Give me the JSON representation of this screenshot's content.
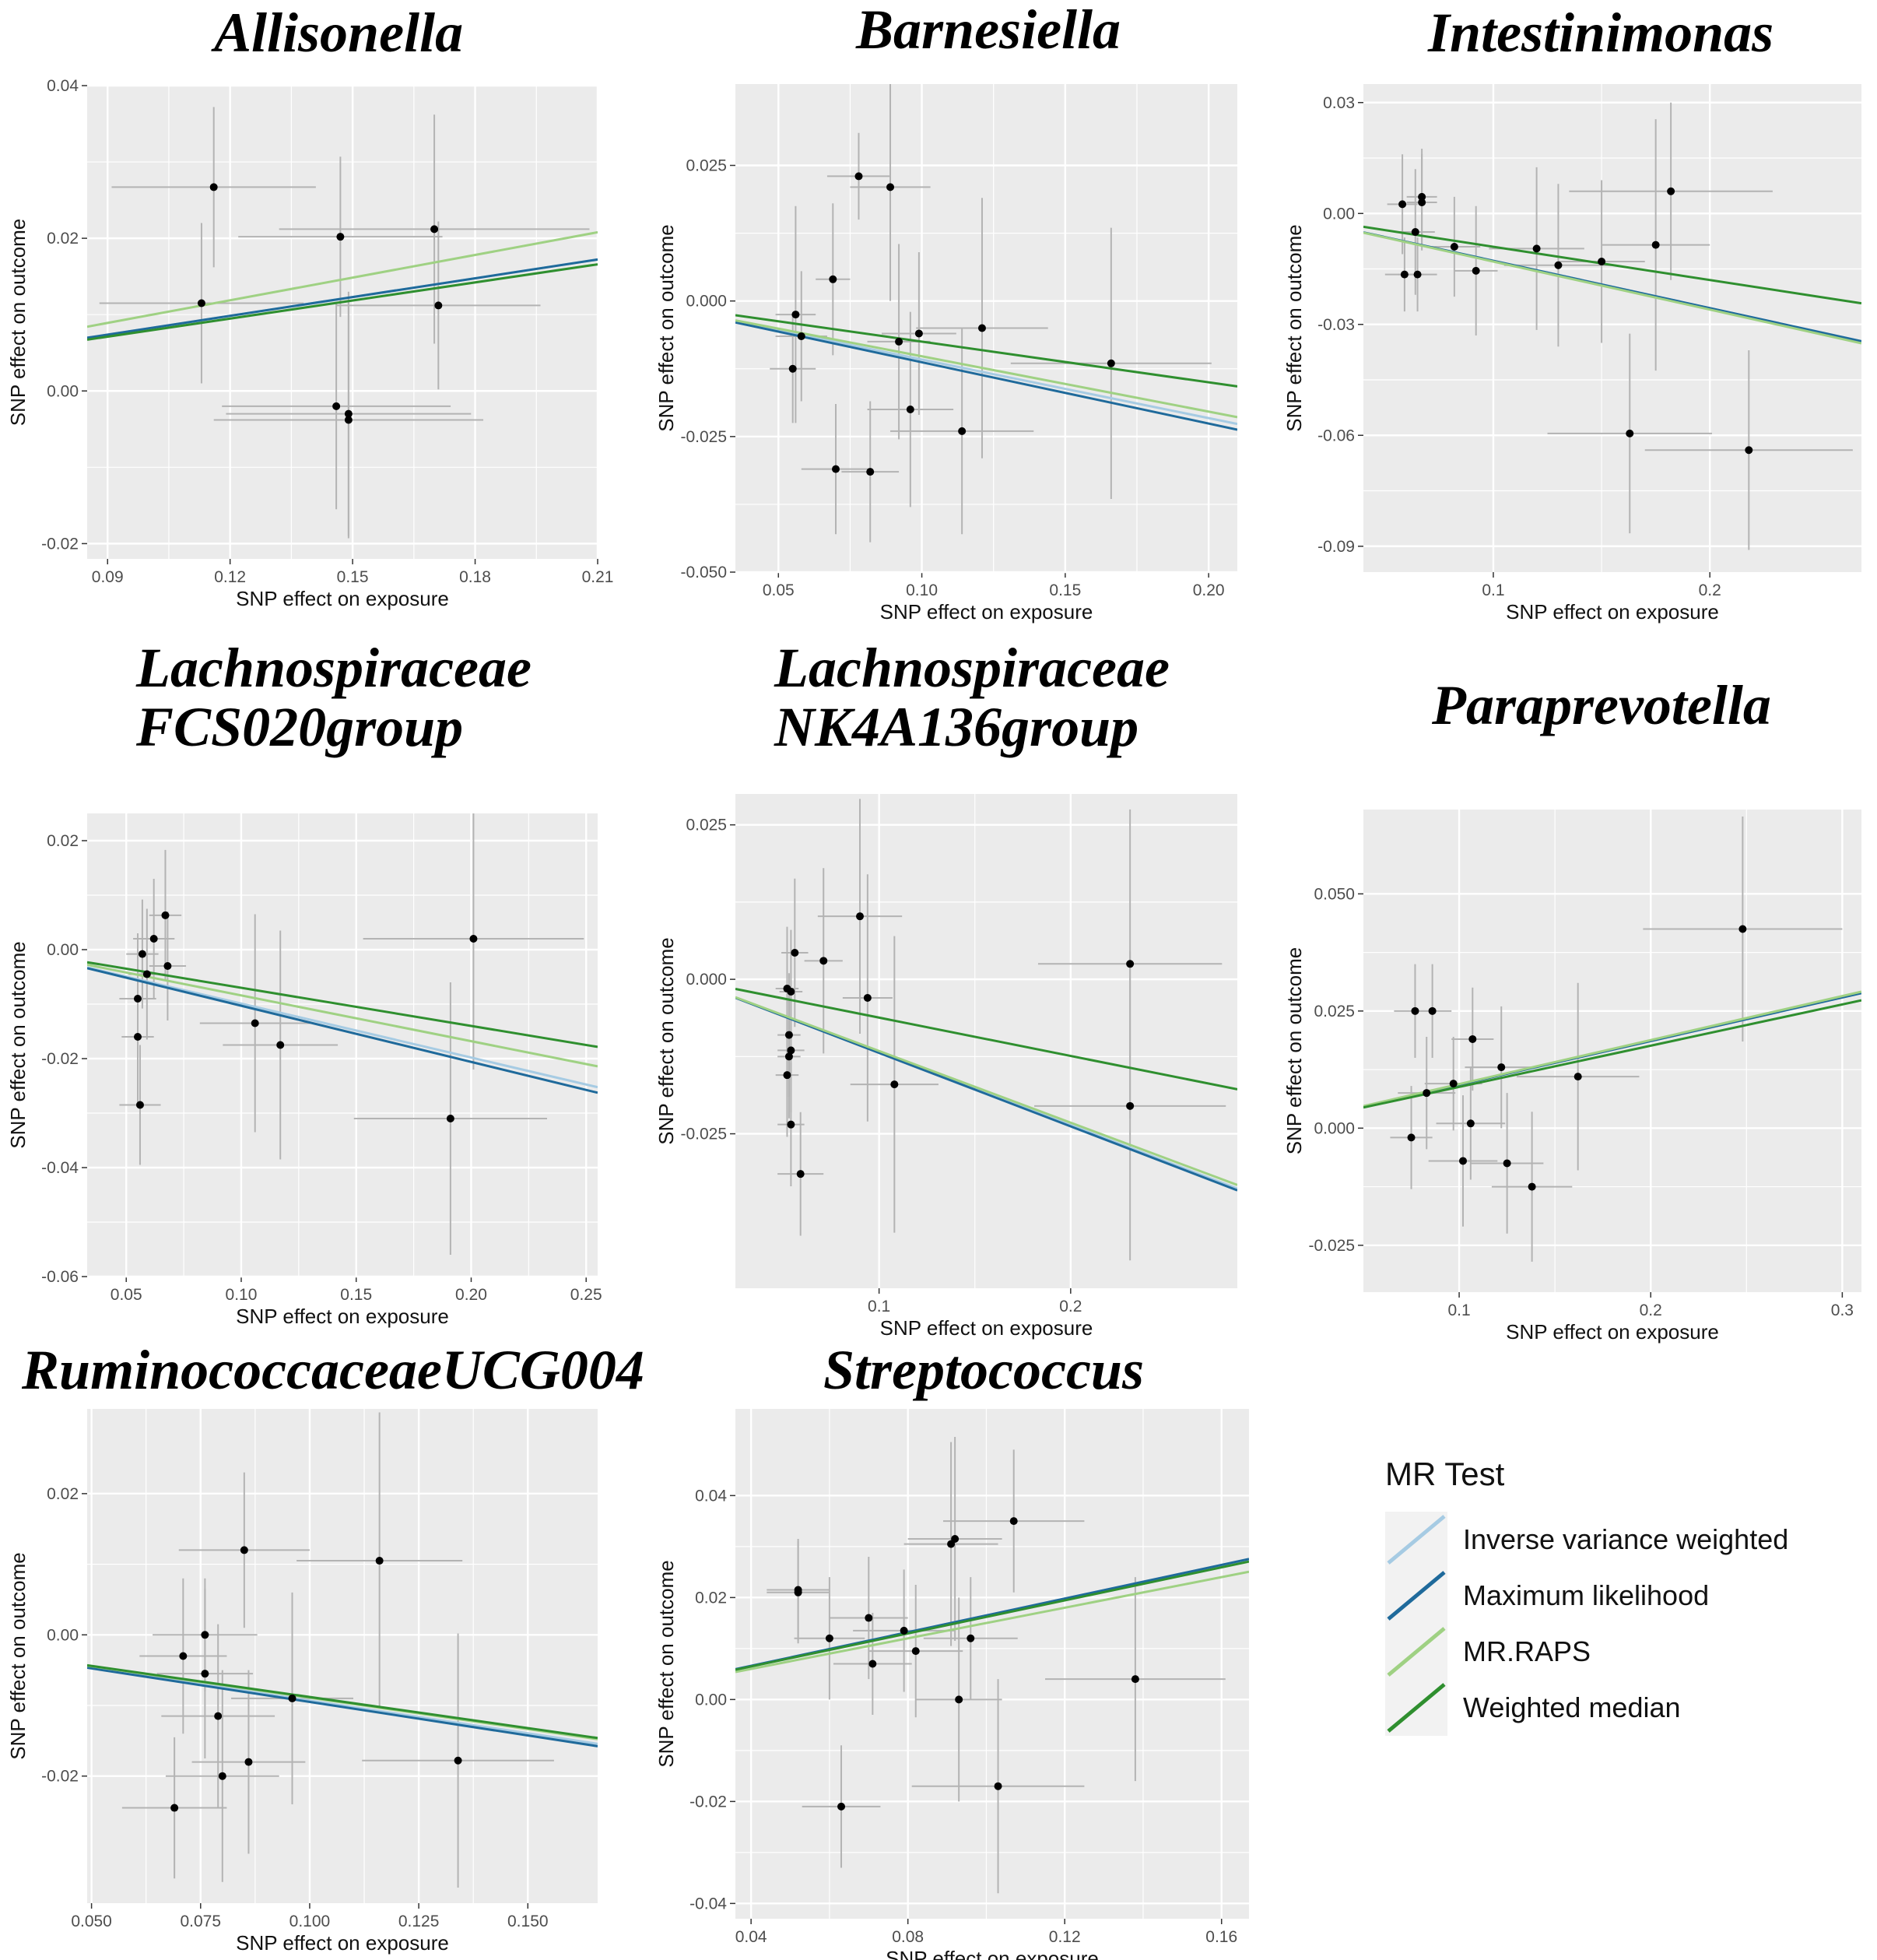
{
  "chart_data": [
    {
      "type": "scatter",
      "title": "Allisonella",
      "xlabel": "SNP effect on exposure",
      "ylabel": "SNP effect on outcome",
      "xlim": [
        0.085,
        0.21
      ],
      "ylim": [
        -0.022,
        0.04
      ],
      "xticks": [
        0.09,
        0.12,
        0.15,
        0.18,
        0.21
      ],
      "yticks": [
        -0.02,
        0.0,
        0.02,
        0.04
      ],
      "xtick_labels": [
        "0.09",
        "0.12",
        "0.15",
        "0.18",
        "0.21"
      ],
      "ytick_labels": [
        "-0.02",
        "0.00",
        "0.02",
        "0.04"
      ],
      "points": [
        {
          "x": 0.116,
          "y": 0.0267,
          "xerr": 0.025,
          "yerr": 0.0105
        },
        {
          "x": 0.113,
          "y": 0.0115,
          "xerr": 0.025,
          "yerr": 0.0105
        },
        {
          "x": 0.147,
          "y": 0.0202,
          "xerr": 0.025,
          "yerr": 0.0105
        },
        {
          "x": 0.17,
          "y": 0.0212,
          "xerr": 0.038,
          "yerr": 0.015
        },
        {
          "x": 0.171,
          "y": 0.0112,
          "xerr": 0.025,
          "yerr": 0.011
        },
        {
          "x": 0.146,
          "y": -0.002,
          "xerr": 0.028,
          "yerr": 0.0135
        },
        {
          "x": 0.149,
          "y": -0.003,
          "xerr": 0.03,
          "yerr": 0.016
        },
        {
          "x": 0.149,
          "y": -0.0038,
          "xerr": 0.033,
          "yerr": 0.0155
        }
      ],
      "lines": {
        "ivw": 0.082,
        "ml": 0.082,
        "raps": 0.099,
        "wm": 0.079
      }
    },
    {
      "type": "scatter",
      "title": "Barnesiella",
      "xlabel": "SNP effect on exposure",
      "ylabel": "SNP effect on outcome",
      "xlim": [
        0.035,
        0.21
      ],
      "ylim": [
        -0.05,
        0.04
      ],
      "xticks": [
        0.05,
        0.1,
        0.15,
        0.2
      ],
      "yticks": [
        -0.05,
        -0.025,
        0.0,
        0.025
      ],
      "xtick_labels": [
        "0.05",
        "0.10",
        "0.15",
        "0.20"
      ],
      "ytick_labels": [
        "-0.050",
        "-0.025",
        "0.000",
        "0.025"
      ],
      "points": [
        {
          "x": 0.078,
          "y": 0.023,
          "xerr": 0.011,
          "yerr": 0.008
        },
        {
          "x": 0.089,
          "y": 0.021,
          "xerr": 0.014,
          "yerr": 0.021
        },
        {
          "x": 0.069,
          "y": 0.004,
          "xerr": 0.006,
          "yerr": 0.014
        },
        {
          "x": 0.056,
          "y": -0.0025,
          "xerr": 0.007,
          "yerr": 0.02
        },
        {
          "x": 0.058,
          "y": -0.0065,
          "xerr": 0.009,
          "yerr": 0.012
        },
        {
          "x": 0.055,
          "y": -0.0125,
          "xerr": 0.008,
          "yerr": 0.01
        },
        {
          "x": 0.092,
          "y": -0.0075,
          "xerr": 0.011,
          "yerr": 0.018
        },
        {
          "x": 0.099,
          "y": -0.006,
          "xerr": 0.013,
          "yerr": 0.015
        },
        {
          "x": 0.121,
          "y": -0.005,
          "xerr": 0.023,
          "yerr": 0.024
        },
        {
          "x": 0.096,
          "y": -0.02,
          "xerr": 0.015,
          "yerr": 0.018
        },
        {
          "x": 0.114,
          "y": -0.024,
          "xerr": 0.025,
          "yerr": 0.019
        },
        {
          "x": 0.07,
          "y": -0.031,
          "xerr": 0.012,
          "yerr": 0.012
        },
        {
          "x": 0.082,
          "y": -0.0315,
          "xerr": 0.01,
          "yerr": 0.013
        },
        {
          "x": 0.166,
          "y": -0.0115,
          "xerr": 0.035,
          "yerr": 0.025
        }
      ],
      "lines": {
        "ivw": -0.108,
        "ml": -0.113,
        "raps": -0.102,
        "wm": -0.075
      }
    },
    {
      "type": "scatter",
      "title": "Intestinimonas",
      "xlabel": "SNP effect on exposure",
      "ylabel": "SNP effect on outcome",
      "xlim": [
        0.04,
        0.27
      ],
      "ylim": [
        -0.097,
        0.035
      ],
      "xticks": [
        0.1,
        0.2
      ],
      "yticks": [
        -0.09,
        -0.06,
        -0.03,
        0.0,
        0.03
      ],
      "xtick_labels": [
        "0.1",
        "0.2"
      ],
      "ytick_labels": [
        "-0.09",
        "-0.06",
        "-0.03",
        "0.00",
        "0.03"
      ],
      "points": [
        {
          "x": 0.058,
          "y": 0.0025,
          "xerr": 0.007,
          "yerr": 0.0135
        },
        {
          "x": 0.067,
          "y": 0.0045,
          "xerr": 0.007,
          "yerr": 0.013
        },
        {
          "x": 0.067,
          "y": 0.003,
          "xerr": 0.007,
          "yerr": 0.013
        },
        {
          "x": 0.064,
          "y": -0.005,
          "xerr": 0.009,
          "yerr": 0.017
        },
        {
          "x": 0.082,
          "y": -0.009,
          "xerr": 0.012,
          "yerr": 0.0135
        },
        {
          "x": 0.059,
          "y": -0.0165,
          "xerr": 0.009,
          "yerr": 0.01
        },
        {
          "x": 0.065,
          "y": -0.0165,
          "xerr": 0.009,
          "yerr": 0.01
        },
        {
          "x": 0.092,
          "y": -0.0155,
          "xerr": 0.01,
          "yerr": 0.0175
        },
        {
          "x": 0.12,
          "y": -0.0095,
          "xerr": 0.022,
          "yerr": 0.022
        },
        {
          "x": 0.13,
          "y": -0.014,
          "xerr": 0.025,
          "yerr": 0.022
        },
        {
          "x": 0.15,
          "y": -0.013,
          "xerr": 0.02,
          "yerr": 0.022
        },
        {
          "x": 0.175,
          "y": -0.0085,
          "xerr": 0.025,
          "yerr": 0.034
        },
        {
          "x": 0.182,
          "y": 0.006,
          "xerr": 0.047,
          "yerr": 0.024
        },
        {
          "x": 0.163,
          "y": -0.0595,
          "xerr": 0.038,
          "yerr": 0.027
        },
        {
          "x": 0.218,
          "y": -0.064,
          "xerr": 0.048,
          "yerr": 0.027
        }
      ],
      "lines": {
        "ivw": -0.128,
        "ml": -0.128,
        "raps": -0.13,
        "wm": -0.09
      }
    },
    {
      "type": "scatter",
      "title": "Lachnospiraceae FCS020group",
      "xlabel": "SNP effect on exposure",
      "ylabel": "SNP effect on outcome",
      "xlim": [
        0.033,
        0.255
      ],
      "ylim": [
        -0.06,
        0.025
      ],
      "xticks": [
        0.05,
        0.1,
        0.15,
        0.2,
        0.25
      ],
      "yticks": [
        -0.06,
        -0.04,
        -0.02,
        0.0,
        0.02
      ],
      "xtick_labels": [
        "0.05",
        "0.10",
        "0.15",
        "0.20",
        "0.25"
      ],
      "ytick_labels": [
        "-0.06",
        "-0.04",
        "-0.02",
        "0.00",
        "0.02"
      ],
      "points": [
        {
          "x": 0.067,
          "y": 0.0063,
          "xerr": 0.007,
          "yerr": 0.012
        },
        {
          "x": 0.062,
          "y": 0.002,
          "xerr": 0.009,
          "yerr": 0.011
        },
        {
          "x": 0.057,
          "y": -0.0008,
          "xerr": 0.007,
          "yerr": 0.01
        },
        {
          "x": 0.068,
          "y": -0.003,
          "xerr": 0.008,
          "yerr": 0.01
        },
        {
          "x": 0.059,
          "y": -0.0045,
          "xerr": 0.008,
          "yerr": 0.012
        },
        {
          "x": 0.055,
          "y": -0.009,
          "xerr": 0.008,
          "yerr": 0.012
        },
        {
          "x": 0.055,
          "y": -0.016,
          "xerr": 0.007,
          "yerr": 0.012
        },
        {
          "x": 0.056,
          "y": -0.0285,
          "xerr": 0.009,
          "yerr": 0.011
        },
        {
          "x": 0.106,
          "y": -0.0135,
          "xerr": 0.024,
          "yerr": 0.02
        },
        {
          "x": 0.117,
          "y": -0.0175,
          "xerr": 0.025,
          "yerr": 0.021
        },
        {
          "x": 0.201,
          "y": 0.002,
          "xerr": 0.048,
          "yerr": 0.024
        },
        {
          "x": 0.191,
          "y": -0.031,
          "xerr": 0.042,
          "yerr": 0.025
        }
      ],
      "lines": {
        "ivw": -0.099,
        "ml": -0.103,
        "raps": -0.084,
        "wm": -0.07
      }
    },
    {
      "type": "scatter",
      "title": "Lachnospiraceae NK4A136group",
      "xlabel": "SNP effect on exposure",
      "ylabel": "SNP effect on outcome",
      "xlim": [
        0.025,
        0.287
      ],
      "ylim": [
        -0.05,
        0.03
      ],
      "xticks": [
        0.1,
        0.2
      ],
      "yticks": [
        -0.025,
        0.0,
        0.025
      ],
      "xtick_labels": [
        "0.1",
        "0.2"
      ],
      "ytick_labels": [
        "-0.025",
        "0.000",
        "0.025"
      ],
      "points": [
        {
          "x": 0.09,
          "y": 0.0102,
          "xerr": 0.022,
          "yerr": 0.019
        },
        {
          "x": 0.056,
          "y": 0.0043,
          "xerr": 0.007,
          "yerr": 0.012
        },
        {
          "x": 0.071,
          "y": 0.003,
          "xerr": 0.01,
          "yerr": 0.015
        },
        {
          "x": 0.052,
          "y": -0.0015,
          "xerr": 0.006,
          "yerr": 0.01
        },
        {
          "x": 0.054,
          "y": -0.002,
          "xerr": 0.006,
          "yerr": 0.01
        },
        {
          "x": 0.094,
          "y": -0.003,
          "xerr": 0.013,
          "yerr": 0.02
        },
        {
          "x": 0.053,
          "y": -0.009,
          "xerr": 0.006,
          "yerr": 0.01
        },
        {
          "x": 0.054,
          "y": -0.0115,
          "xerr": 0.007,
          "yerr": 0.01
        },
        {
          "x": 0.053,
          "y": -0.0125,
          "xerr": 0.006,
          "yerr": 0.01
        },
        {
          "x": 0.052,
          "y": -0.0155,
          "xerr": 0.006,
          "yerr": 0.01
        },
        {
          "x": 0.054,
          "y": -0.0235,
          "xerr": 0.007,
          "yerr": 0.01
        },
        {
          "x": 0.108,
          "y": -0.017,
          "xerr": 0.023,
          "yerr": 0.024
        },
        {
          "x": 0.059,
          "y": -0.0315,
          "xerr": 0.012,
          "yerr": 0.01
        },
        {
          "x": 0.231,
          "y": 0.0025,
          "xerr": 0.048,
          "yerr": 0.025
        },
        {
          "x": 0.231,
          "y": -0.0205,
          "xerr": 0.05,
          "yerr": 0.025
        }
      ],
      "lines": {
        "ivw": -0.118,
        "ml": -0.119,
        "raps": -0.116,
        "wm": -0.062
      }
    },
    {
      "type": "scatter",
      "title": "Paraprevotella",
      "xlabel": "SNP effect on exposure",
      "ylabel": "SNP effect on outcome",
      "xlim": [
        0.05,
        0.31
      ],
      "ylim": [
        -0.035,
        0.068
      ],
      "xticks": [
        0.1,
        0.2,
        0.3
      ],
      "yticks": [
        -0.025,
        0.0,
        0.025,
        0.05
      ],
      "xtick_labels": [
        "0.1",
        "0.2",
        "0.3"
      ],
      "ytick_labels": [
        "-0.025",
        "0.000",
        "0.025",
        "0.050"
      ],
      "points": [
        {
          "x": 0.077,
          "y": 0.025,
          "xerr": 0.011,
          "yerr": 0.01
        },
        {
          "x": 0.086,
          "y": 0.025,
          "xerr": 0.01,
          "yerr": 0.01
        },
        {
          "x": 0.107,
          "y": 0.019,
          "xerr": 0.011,
          "yerr": 0.011
        },
        {
          "x": 0.122,
          "y": 0.013,
          "xerr": 0.019,
          "yerr": 0.013
        },
        {
          "x": 0.097,
          "y": 0.0095,
          "xerr": 0.015,
          "yerr": 0.01
        },
        {
          "x": 0.083,
          "y": 0.0075,
          "xerr": 0.015,
          "yerr": 0.012
        },
        {
          "x": 0.162,
          "y": 0.011,
          "xerr": 0.032,
          "yerr": 0.02
        },
        {
          "x": 0.106,
          "y": 0.001,
          "xerr": 0.018,
          "yerr": 0.012
        },
        {
          "x": 0.075,
          "y": -0.002,
          "xerr": 0.011,
          "yerr": 0.011
        },
        {
          "x": 0.102,
          "y": -0.007,
          "xerr": 0.018,
          "yerr": 0.014
        },
        {
          "x": 0.125,
          "y": -0.0075,
          "xerr": 0.019,
          "yerr": 0.015
        },
        {
          "x": 0.138,
          "y": -0.0125,
          "xerr": 0.021,
          "yerr": 0.016
        },
        {
          "x": 0.248,
          "y": 0.0425,
          "xerr": 0.052,
          "yerr": 0.024
        }
      ],
      "lines": {
        "ivw": 0.093,
        "ml": 0.093,
        "raps": 0.094,
        "wm": 0.088
      }
    },
    {
      "type": "scatter",
      "title": "RuminococcaceaeUCG004",
      "xlabel": "SNP effect on exposure",
      "ylabel": "SNP effect on outcome",
      "xlim": [
        0.049,
        0.166
      ],
      "ylim": [
        -0.038,
        0.032
      ],
      "xticks": [
        0.05,
        0.075,
        0.1,
        0.125,
        0.15
      ],
      "yticks": [
        -0.02,
        0.0,
        0.02
      ],
      "xtick_labels": [
        "0.050",
        "0.075",
        "0.100",
        "0.125",
        "0.150"
      ],
      "ytick_labels": [
        "-0.02",
        "0.00",
        "0.02"
      ],
      "points": [
        {
          "x": 0.085,
          "y": 0.012,
          "xerr": 0.015,
          "yerr": 0.011
        },
        {
          "x": 0.116,
          "y": 0.0105,
          "xerr": 0.019,
          "yerr": 0.021
        },
        {
          "x": 0.076,
          "y": 0.0,
          "xerr": 0.012,
          "yerr": 0.008
        },
        {
          "x": 0.071,
          "y": -0.003,
          "xerr": 0.01,
          "yerr": 0.011
        },
        {
          "x": 0.076,
          "y": -0.0055,
          "xerr": 0.011,
          "yerr": 0.012
        },
        {
          "x": 0.096,
          "y": -0.009,
          "xerr": 0.014,
          "yerr": 0.015
        },
        {
          "x": 0.079,
          "y": -0.0115,
          "xerr": 0.013,
          "yerr": 0.013
        },
        {
          "x": 0.08,
          "y": -0.02,
          "xerr": 0.013,
          "yerr": 0.015
        },
        {
          "x": 0.086,
          "y": -0.018,
          "xerr": 0.013,
          "yerr": 0.013
        },
        {
          "x": 0.069,
          "y": -0.0245,
          "xerr": 0.012,
          "yerr": 0.01
        },
        {
          "x": 0.134,
          "y": -0.0178,
          "xerr": 0.022,
          "yerr": 0.018
        }
      ],
      "lines": {
        "ivw": -0.093,
        "ml": -0.095,
        "raps": -0.089,
        "wm": -0.088
      }
    },
    {
      "type": "scatter",
      "title": "Streptococcus",
      "xlabel": "SNP effect on exposure",
      "ylabel": "SNP effect on outcome",
      "xlim": [
        0.036,
        0.167
      ],
      "ylim": [
        -0.043,
        0.057
      ],
      "xticks": [
        0.04,
        0.08,
        0.12,
        0.16
      ],
      "yticks": [
        -0.04,
        -0.02,
        0.0,
        0.02,
        0.04
      ],
      "xtick_labels": [
        "0.04",
        "0.08",
        "0.12",
        "0.16"
      ],
      "ytick_labels": [
        "-0.04",
        "-0.02",
        "0.00",
        "0.02",
        "0.04"
      ],
      "points": [
        {
          "x": 0.107,
          "y": 0.035,
          "xerr": 0.018,
          "yerr": 0.014
        },
        {
          "x": 0.092,
          "y": 0.0315,
          "xerr": 0.012,
          "yerr": 0.02
        },
        {
          "x": 0.091,
          "y": 0.0305,
          "xerr": 0.012,
          "yerr": 0.02
        },
        {
          "x": 0.052,
          "y": 0.0215,
          "xerr": 0.008,
          "yerr": 0.01
        },
        {
          "x": 0.052,
          "y": 0.021,
          "xerr": 0.008,
          "yerr": 0.01
        },
        {
          "x": 0.07,
          "y": 0.016,
          "xerr": 0.01,
          "yerr": 0.012
        },
        {
          "x": 0.079,
          "y": 0.0135,
          "xerr": 0.013,
          "yerr": 0.012
        },
        {
          "x": 0.06,
          "y": 0.012,
          "xerr": 0.009,
          "yerr": 0.012
        },
        {
          "x": 0.096,
          "y": 0.012,
          "xerr": 0.012,
          "yerr": 0.012
        },
        {
          "x": 0.082,
          "y": 0.0095,
          "xerr": 0.012,
          "yerr": 0.013
        },
        {
          "x": 0.071,
          "y": 0.007,
          "xerr": 0.01,
          "yerr": 0.01
        },
        {
          "x": 0.093,
          "y": 0.0,
          "xerr": 0.011,
          "yerr": 0.02
        },
        {
          "x": 0.138,
          "y": 0.004,
          "xerr": 0.023,
          "yerr": 0.02
        },
        {
          "x": 0.103,
          "y": -0.017,
          "xerr": 0.022,
          "yerr": 0.021
        },
        {
          "x": 0.063,
          "y": -0.021,
          "xerr": 0.01,
          "yerr": 0.012
        }
      ],
      "lines": {
        "ivw": 0.165,
        "ml": 0.165,
        "raps": 0.15,
        "wm": 0.162
      }
    }
  ],
  "legend": {
    "title": "MR Test",
    "items": [
      {
        "key": "ivw",
        "label": "Inverse variance weighted",
        "color": "#a6cbe3"
      },
      {
        "key": "ml",
        "label": "Maximum likelihood",
        "color": "#1f6a9b"
      },
      {
        "key": "raps",
        "label": "MR.RAPS",
        "color": "#9fd183"
      },
      {
        "key": "wm",
        "label": "Weighted median",
        "color": "#2f8f2f"
      }
    ]
  },
  "colors": {
    "panel_bg": "#ebebeb",
    "grid": "#ffffff",
    "point": "#000000",
    "errorbar": "#b3b3b3"
  }
}
